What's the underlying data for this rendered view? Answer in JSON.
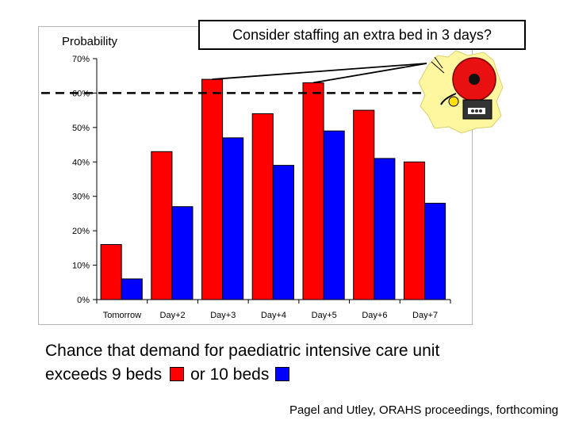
{
  "chart_data": {
    "type": "bar",
    "ylabel": "Probability",
    "categories": [
      "Tomorrow",
      "Day+2",
      "Day+3",
      "Day+4",
      "Day+5",
      "Day+6",
      "Day+7"
    ],
    "series": [
      {
        "name": "exceeds 9 beds",
        "color": "#ff0000",
        "values": [
          16,
          43,
          64,
          54,
          63,
          55,
          40
        ]
      },
      {
        "name": "or 10 beds",
        "color": "#0000ff",
        "values": [
          6,
          27,
          47,
          39,
          49,
          41,
          28
        ]
      }
    ],
    "ylim": [
      0,
      70
    ],
    "yticks": [
      0,
      10,
      20,
      30,
      40,
      50,
      60,
      70
    ],
    "ytick_labels": [
      "0%",
      "10%",
      "20%",
      "30%",
      "40%",
      "50%",
      "60%",
      "70%"
    ],
    "threshold": 60,
    "annotation": "Consider staffing an extra bed in 3 days?"
  },
  "caption": {
    "line1": "Chance that demand for paediatric intensive care unit",
    "line2_prefix": "exceeds 9 beds",
    "line2_middle": "or 10 beds"
  },
  "citation": "Pagel and Utley, ORAHS proceedings, forthcoming",
  "colors": {
    "red": "#ff0000",
    "blue": "#0000ff"
  },
  "icons": {
    "alarm": "alarm-bell-icon"
  }
}
